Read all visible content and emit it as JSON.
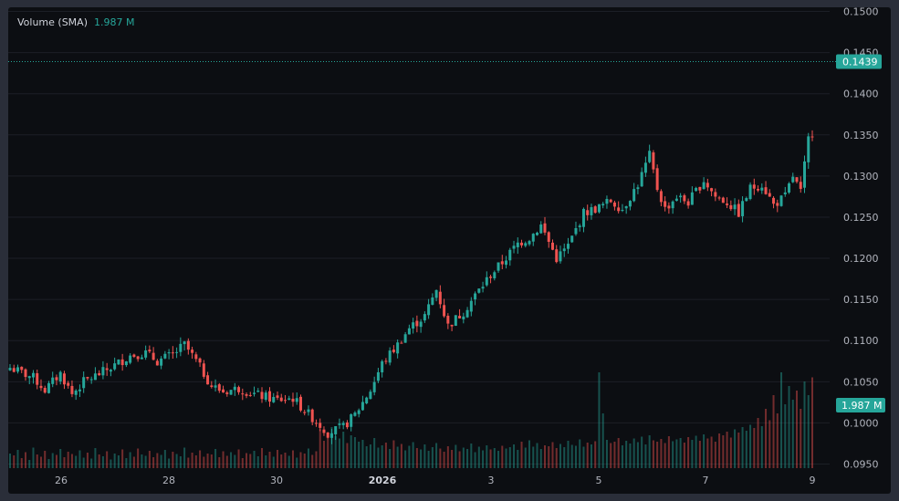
{
  "legend": {
    "label": "Volume (SMA)",
    "value": "1.987 M"
  },
  "colors": {
    "up": "#26a69a",
    "down": "#ef5350",
    "background": "#0c0e12",
    "grid": "#1c1f26",
    "price_line": "#26a69a"
  },
  "chart_data": {
    "type": "candlestick",
    "ylim": [
      0.0945,
      0.1505
    ],
    "y_ticks": [
      "0.1500",
      "0.1450",
      "0.1400",
      "0.1350",
      "0.1300",
      "0.1250",
      "0.1200",
      "0.1150",
      "0.1100",
      "0.1050",
      "0.1000",
      "0.0950"
    ],
    "x_ticks": [
      "26",
      "28",
      "30",
      "2026",
      "3",
      "5",
      "7",
      "9"
    ],
    "bold_x_tick": "2026",
    "grid": true,
    "last_price": "0.1439",
    "last_volume_label": "1.987 M",
    "close_path": [
      [
        0,
        0.1067
      ],
      [
        6,
        0.1055
      ],
      [
        9,
        0.104
      ],
      [
        13,
        0.106
      ],
      [
        16,
        0.1035
      ],
      [
        19,
        0.105
      ],
      [
        24,
        0.1062
      ],
      [
        27,
        0.107
      ],
      [
        31,
        0.1082
      ],
      [
        35,
        0.1085
      ],
      [
        38,
        0.1075
      ],
      [
        42,
        0.1083
      ],
      [
        45,
        0.1095
      ],
      [
        48,
        0.1075
      ],
      [
        52,
        0.1045
      ],
      [
        55,
        0.1038
      ],
      [
        59,
        0.1042
      ],
      [
        63,
        0.1035
      ],
      [
        67,
        0.103
      ],
      [
        69,
        0.1028
      ],
      [
        73,
        0.103
      ],
      [
        76,
        0.1015
      ],
      [
        79,
        0.1002
      ],
      [
        82,
        0.0988
      ],
      [
        86,
        0.0995
      ],
      [
        89,
        0.101
      ],
      [
        93,
        0.104
      ],
      [
        96,
        0.1072
      ],
      [
        100,
        0.1095
      ],
      [
        103,
        0.1115
      ],
      [
        107,
        0.113
      ],
      [
        110,
        0.1162
      ],
      [
        113,
        0.1118
      ],
      [
        117,
        0.1135
      ],
      [
        120,
        0.1155
      ],
      [
        124,
        0.118
      ],
      [
        127,
        0.1195
      ],
      [
        131,
        0.1218
      ],
      [
        134,
        0.1225
      ],
      [
        137,
        0.124
      ],
      [
        141,
        0.12
      ],
      [
        144,
        0.1215
      ],
      [
        148,
        0.1255
      ],
      [
        152,
        0.1262
      ],
      [
        155,
        0.127
      ],
      [
        158,
        0.126
      ],
      [
        162,
        0.129
      ],
      [
        165,
        0.1325
      ],
      [
        167,
        0.1285
      ],
      [
        169,
        0.126
      ],
      [
        172,
        0.1275
      ],
      [
        175,
        0.1268
      ],
      [
        179,
        0.1295
      ],
      [
        182,
        0.1275
      ],
      [
        185,
        0.1268
      ],
      [
        188,
        0.1255
      ],
      [
        191,
        0.1285
      ],
      [
        194,
        0.129
      ],
      [
        197,
        0.1265
      ],
      [
        200,
        0.1275
      ],
      [
        202,
        0.13
      ],
      [
        204,
        0.128
      ],
      [
        206,
        0.1345
      ],
      [
        209,
        0.137
      ],
      [
        212,
        0.1395
      ],
      [
        215,
        0.1439
      ]
    ],
    "volume_m": [
      0.32,
      0.28,
      0.4,
      0.22,
      0.35,
      0.18,
      0.45,
      0.3,
      0.25,
      0.38,
      0.2,
      0.33,
      0.29,
      0.42,
      0.24,
      0.36,
      0.31,
      0.27,
      0.39,
      0.23,
      0.34,
      0.21,
      0.44,
      0.3,
      0.26,
      0.37,
      0.19,
      0.32,
      0.28,
      0.41,
      0.22,
      0.35,
      0.25,
      0.43,
      0.3,
      0.27,
      0.38,
      0.24,
      0.33,
      0.29,
      0.4,
      0.21,
      0.36,
      0.31,
      0.26,
      0.45,
      0.23,
      0.34,
      0.28,
      0.39,
      0.25,
      0.32,
      0.3,
      0.42,
      0.24,
      0.37,
      0.27,
      0.35,
      0.29,
      0.41,
      0.22,
      0.33,
      0.31,
      0.38,
      0.26,
      0.44,
      0.28,
      0.36,
      0.25,
      0.4,
      0.3,
      0.34,
      0.27,
      0.39,
      0.23,
      0.35,
      0.32,
      0.43,
      0.29,
      0.37,
      0.85,
      0.6,
      0.75,
      0.9,
      0.7,
      0.65,
      0.8,
      0.55,
      0.72,
      0.68,
      0.58,
      0.62,
      0.48,
      0.52,
      0.66,
      0.45,
      0.5,
      0.56,
      0.42,
      0.61,
      0.47,
      0.53,
      0.39,
      0.49,
      0.57,
      0.44,
      0.41,
      0.52,
      0.38,
      0.46,
      0.55,
      0.43,
      0.36,
      0.48,
      0.4,
      0.51,
      0.37,
      0.45,
      0.42,
      0.54,
      0.35,
      0.47,
      0.39,
      0.5,
      0.41,
      0.44,
      0.38,
      0.49,
      0.43,
      0.46,
      0.52,
      0.4,
      0.58,
      0.45,
      0.61,
      0.47,
      0.55,
      0.42,
      0.5,
      0.48,
      0.57,
      0.44,
      0.53,
      0.46,
      0.6,
      0.51,
      0.49,
      0.63,
      0.47,
      0.56,
      0.52,
      0.59,
      2.1,
      1.2,
      0.62,
      0.55,
      0.58,
      0.66,
      0.5,
      0.6,
      0.54,
      0.65,
      0.57,
      0.69,
      0.52,
      0.72,
      0.61,
      0.58,
      0.64,
      0.55,
      0.7,
      0.59,
      0.63,
      0.66,
      0.56,
      0.68,
      0.62,
      0.71,
      0.6,
      0.74,
      0.65,
      0.69,
      0.58,
      0.76,
      0.72,
      0.8,
      0.67,
      0.85,
      0.78,
      0.9,
      0.82,
      0.95,
      0.88,
      1.1,
      0.92,
      1.3,
      1.05,
      1.6,
      1.2,
      2.1,
      1.4,
      1.8,
      1.5,
      1.7,
      1.3,
      1.9,
      1.6,
      1.99
    ]
  }
}
